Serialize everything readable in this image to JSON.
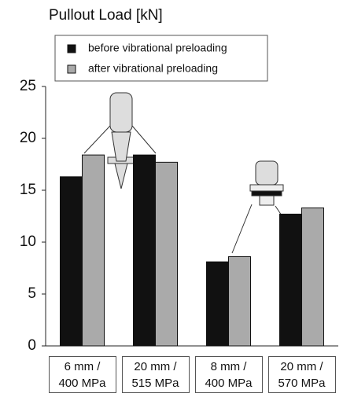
{
  "chart_data": {
    "type": "bar",
    "title": "Pullout Load [kN]",
    "categories": [
      "6 mm /\n400 MPa",
      "20 mm /\n515 MPa",
      "8 mm /\n400 MPa",
      "20 mm /\n570 MPa"
    ],
    "series": [
      {
        "name": "before vibrational preloading",
        "color": "#111111",
        "values": [
          16.3,
          18.4,
          8.1,
          12.7
        ]
      },
      {
        "name": "after vibrational preloading",
        "color": "#aaaaaa",
        "values": [
          18.4,
          17.7,
          8.6,
          13.3
        ]
      }
    ],
    "ylim": [
      0,
      25
    ],
    "yticks": [
      0,
      5,
      10,
      15,
      20,
      25
    ]
  }
}
